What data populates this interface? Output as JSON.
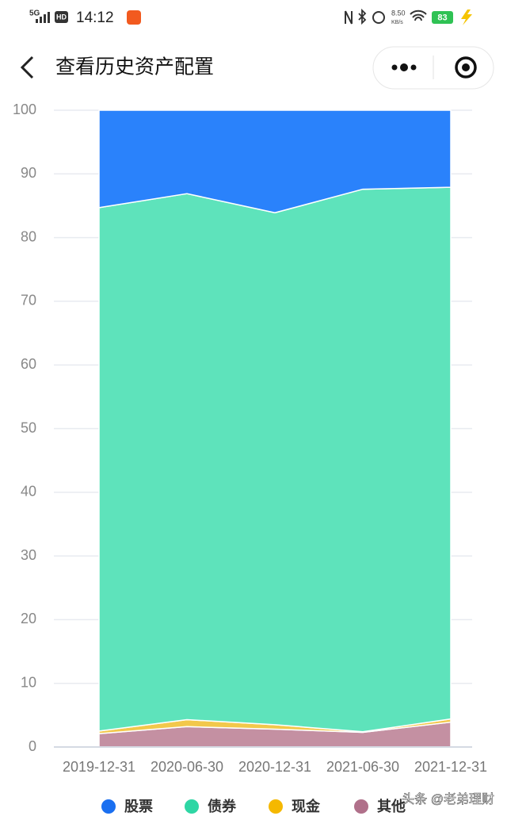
{
  "status_bar": {
    "network": "5G",
    "hd": "HD",
    "time": "14:12",
    "speed_value": "8.50",
    "speed_unit": "KB/s",
    "battery": "83"
  },
  "nav": {
    "title": "查看历史资产配置"
  },
  "chart_data": {
    "type": "stacked_area",
    "categories": [
      "2019-12-31",
      "2020-06-30",
      "2020-12-31",
      "2021-06-30",
      "2021-12-31"
    ],
    "series": [
      {
        "name": "股票",
        "color": "#2a82fb",
        "legend_color": "#1a6ff0",
        "values": [
          15.3,
          13.1,
          16.1,
          12.4,
          12.1
        ]
      },
      {
        "name": "债券",
        "color": "#5ee3bb",
        "legend_color": "#2ed6a4",
        "values": [
          82.2,
          82.6,
          80.4,
          85.2,
          83.5
        ]
      },
      {
        "name": "现金",
        "color": "#f2c84b",
        "legend_color": "#f5b800",
        "values": [
          0.4,
          1.1,
          0.7,
          0.1,
          0.5
        ]
      },
      {
        "name": "其他",
        "color": "#c490a2",
        "legend_color": "#b0708a",
        "values": [
          2.1,
          3.2,
          2.8,
          2.3,
          3.9
        ]
      }
    ],
    "ylim": [
      0,
      100
    ],
    "yticks": [
      0,
      10,
      20,
      30,
      40,
      50,
      60,
      70,
      80,
      90,
      100
    ],
    "grid": true
  },
  "watermark": "头条 @老弟理财"
}
